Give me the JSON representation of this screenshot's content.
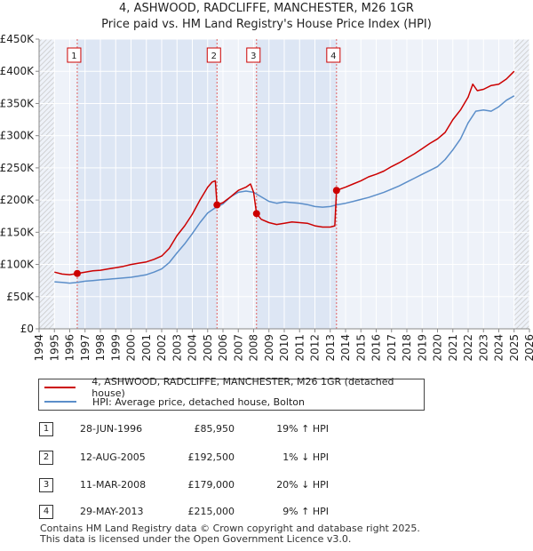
{
  "title": {
    "line1": "4, ASHWOOD, RADCLIFFE, MANCHESTER, M26 1GR",
    "line2": "Price paid vs. HM Land Registry's House Price Index (HPI)"
  },
  "chart_data": {
    "type": "line",
    "title": "4, ASHWOOD, RADCLIFFE, MANCHESTER, M26 1GR — Price paid vs. HM Land Registry's House Price Index (HPI)",
    "xlabel": "",
    "ylabel": "",
    "xlim": [
      1994,
      2026
    ],
    "ylim": [
      0,
      450000
    ],
    "x_ticks": [
      1994,
      1995,
      1996,
      1997,
      1998,
      1999,
      2000,
      2001,
      2002,
      2003,
      2004,
      2005,
      2006,
      2007,
      2008,
      2009,
      2010,
      2011,
      2012,
      2013,
      2014,
      2015,
      2016,
      2017,
      2018,
      2019,
      2020,
      2021,
      2022,
      2023,
      2024,
      2025,
      2026
    ],
    "x_tick_labels": [
      "1994",
      "1995",
      "1996",
      "1997",
      "1998",
      "1999",
      "2000",
      "2001",
      "2002",
      "2003",
      "2004",
      "2005",
      "2006",
      "2007",
      "2008",
      "2009",
      "2010",
      "2011",
      "2012",
      "2013",
      "2014",
      "2015",
      "2016",
      "2017",
      "2018",
      "2019",
      "2020",
      "2021",
      "2022",
      "2023",
      "2024",
      "2025",
      "2026"
    ],
    "y_ticks": [
      0,
      50000,
      100000,
      150000,
      200000,
      250000,
      300000,
      350000,
      400000,
      450000
    ],
    "y_tick_labels": [
      "£0",
      "£50K",
      "£100K",
      "£150K",
      "£200K",
      "£250K",
      "£300K",
      "£350K",
      "£400K",
      "£450K"
    ],
    "grid": true,
    "hatched_ranges": [
      [
        1994,
        1995
      ],
      [
        2025.0,
        2026
      ]
    ],
    "series": [
      {
        "name": "4, ASHWOOD, RADCLIFFE, MANCHESTER, M26 1GR (detached house)",
        "color": "#cc0000",
        "x": [
          1995.0,
          1995.5,
          1996.0,
          1996.49,
          1997.0,
          1997.5,
          1998.0,
          1998.5,
          1999.0,
          1999.5,
          2000.0,
          2000.5,
          2001.0,
          2001.5,
          2002.0,
          2002.5,
          2003.0,
          2003.5,
          2004.0,
          2004.5,
          2005.0,
          2005.3,
          2005.5,
          2005.61,
          2006.0,
          2006.5,
          2007.0,
          2007.5,
          2007.8,
          2008.0,
          2008.19,
          2008.5,
          2009.0,
          2009.5,
          2010.0,
          2010.5,
          2011.0,
          2011.5,
          2012.0,
          2012.5,
          2013.0,
          2013.3,
          2013.41,
          2014.0,
          2014.5,
          2015.0,
          2015.5,
          2016.0,
          2016.5,
          2017.0,
          2017.5,
          2018.0,
          2018.5,
          2019.0,
          2019.5,
          2020.0,
          2020.5,
          2021.0,
          2021.5,
          2022.0,
          2022.3,
          2022.6,
          2023.0,
          2023.5,
          2024.0,
          2024.5,
          2025.0
        ],
        "y": [
          88000,
          85000,
          84000,
          85950,
          88000,
          90000,
          91000,
          93000,
          95000,
          97000,
          100000,
          102000,
          104000,
          108000,
          113000,
          125000,
          145000,
          160000,
          178000,
          200000,
          220000,
          228000,
          230000,
          192500,
          196000,
          205000,
          215000,
          220000,
          225000,
          212000,
          179000,
          170000,
          165000,
          162000,
          164000,
          166000,
          165000,
          164000,
          160000,
          158000,
          158000,
          160000,
          215000,
          220000,
          225000,
          230000,
          236000,
          240000,
          245000,
          252000,
          258000,
          265000,
          272000,
          280000,
          288000,
          295000,
          305000,
          325000,
          340000,
          360000,
          380000,
          370000,
          372000,
          378000,
          380000,
          388000,
          400000
        ]
      },
      {
        "name": "HPI: Average price, detached house, Bolton",
        "color": "#5b8ec9",
        "x": [
          1995.0,
          1995.5,
          1996.0,
          1996.5,
          1997.0,
          1997.5,
          1998.0,
          1998.5,
          1999.0,
          1999.5,
          2000.0,
          2000.5,
          2001.0,
          2001.5,
          2002.0,
          2002.5,
          2003.0,
          2003.5,
          2004.0,
          2004.5,
          2005.0,
          2005.5,
          2006.0,
          2006.5,
          2007.0,
          2007.5,
          2008.0,
          2008.5,
          2009.0,
          2009.5,
          2010.0,
          2010.5,
          2011.0,
          2011.5,
          2012.0,
          2012.5,
          2013.0,
          2013.5,
          2014.0,
          2014.5,
          2015.0,
          2015.5,
          2016.0,
          2016.5,
          2017.0,
          2017.5,
          2018.0,
          2018.5,
          2019.0,
          2019.5,
          2020.0,
          2020.5,
          2021.0,
          2021.5,
          2022.0,
          2022.5,
          2023.0,
          2023.5,
          2024.0,
          2024.5,
          2025.0
        ],
        "y": [
          73000,
          72000,
          71000,
          72000,
          74000,
          75000,
          76000,
          77000,
          78000,
          79000,
          80000,
          82000,
          84000,
          88000,
          93000,
          103000,
          118000,
          132000,
          148000,
          165000,
          180000,
          188000,
          194000,
          205000,
          212000,
          214000,
          212000,
          205000,
          198000,
          195000,
          197000,
          196000,
          195000,
          193000,
          190000,
          189000,
          190000,
          193000,
          195000,
          198000,
          201000,
          204000,
          208000,
          212000,
          217000,
          222000,
          228000,
          234000,
          240000,
          246000,
          252000,
          263000,
          278000,
          295000,
          320000,
          338000,
          340000,
          338000,
          345000,
          355000,
          362000
        ]
      }
    ],
    "sales": [
      {
        "label": "1",
        "x": 1996.49,
        "y": 85950
      },
      {
        "label": "2",
        "x": 2005.61,
        "y": 192500
      },
      {
        "label": "3",
        "x": 2008.19,
        "y": 179000
      },
      {
        "label": "4",
        "x": 2013.41,
        "y": 215000
      }
    ]
  },
  "legend": {
    "items": [
      {
        "label": "4, ASHWOOD, RADCLIFFE, MANCHESTER, M26 1GR (detached house)"
      },
      {
        "label": "HPI: Average price, detached house, Bolton"
      }
    ]
  },
  "table": {
    "rows": [
      {
        "num": "1",
        "date": "28-JUN-1996",
        "price": "£85,950",
        "hpi": "19% ↑ HPI"
      },
      {
        "num": "2",
        "date": "12-AUG-2005",
        "price": "£192,500",
        "hpi": "1% ↓ HPI"
      },
      {
        "num": "3",
        "date": "11-MAR-2008",
        "price": "£179,000",
        "hpi": "20% ↓ HPI"
      },
      {
        "num": "4",
        "date": "29-MAY-2013",
        "price": "£215,000",
        "hpi": "9% ↑ HPI"
      }
    ]
  },
  "footer": {
    "line1": "Contains HM Land Registry data © Crown copyright and database right 2025.",
    "line2": "This data is licensed under the Open Government Licence v3.0."
  }
}
